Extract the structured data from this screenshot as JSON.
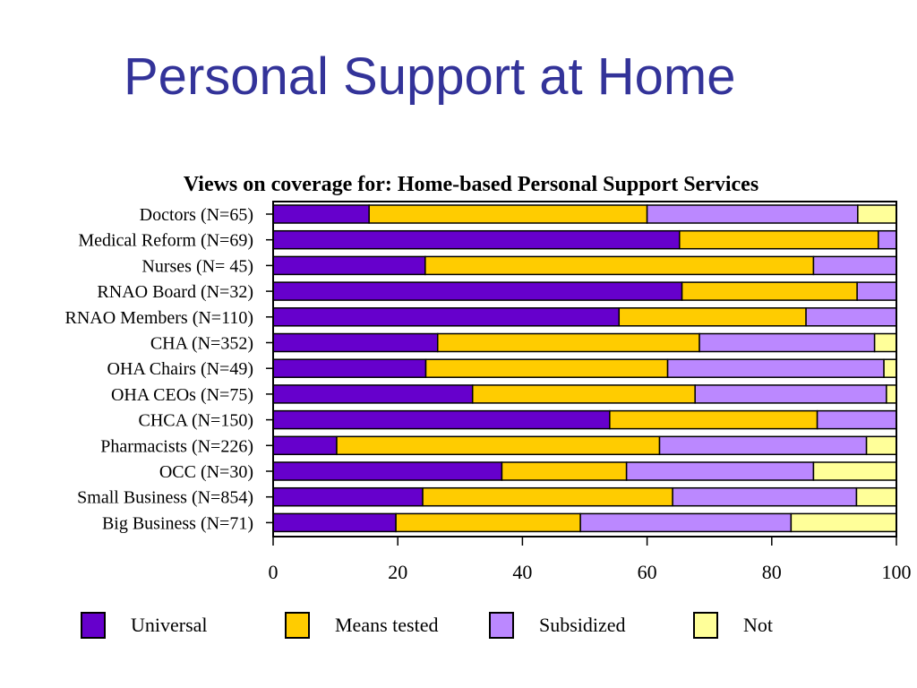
{
  "page": {
    "title": "Personal Support at Home"
  },
  "chart_data": {
    "type": "bar",
    "orientation": "horizontal",
    "stacked": true,
    "title": "Views on coverage for: Home-based Personal Support Services",
    "xlabel": "",
    "ylabel": "",
    "xlim": [
      0,
      100
    ],
    "xticks": [
      0,
      20,
      40,
      60,
      80,
      100
    ],
    "grid": false,
    "legend_position": "bottom",
    "categories": [
      "Doctors (N=65)",
      "Medical Reform (N=69)",
      "Nurses (N= 45)",
      "RNAO Board (N=32)",
      "RNAO Members (N=110)",
      "CHA (N=352)",
      "OHA Chairs (N=49)",
      "OHA CEOs (N=75)",
      "CHCA (N=150)",
      "Pharmacists (N=226)",
      "OCC (N=30)",
      "Small Business (N=854)",
      "Big Business (N=71)"
    ],
    "series": [
      {
        "name": "Universal",
        "color": "#6600cc",
        "values": [
          15.4,
          65.2,
          24.4,
          65.6,
          55.5,
          26.4,
          24.5,
          32.0,
          54.0,
          10.2,
          36.7,
          24.0,
          19.7
        ]
      },
      {
        "name": "Means tested",
        "color": "#ffcc00",
        "values": [
          44.6,
          31.9,
          62.3,
          28.1,
          30.0,
          42.0,
          38.8,
          35.7,
          33.3,
          51.8,
          20.0,
          40.1,
          29.6
        ]
      },
      {
        "name": "Subsidized",
        "color": "#bb88ff",
        "values": [
          33.8,
          2.9,
          13.3,
          6.3,
          14.5,
          28.1,
          34.7,
          30.7,
          12.7,
          33.2,
          30.0,
          29.5,
          33.8
        ]
      },
      {
        "name": "Not",
        "color": "#ffff99",
        "values": [
          6.2,
          0.0,
          0.0,
          0.0,
          0.0,
          3.5,
          2.0,
          1.6,
          0.0,
          4.8,
          13.3,
          6.4,
          16.9
        ]
      }
    ]
  }
}
